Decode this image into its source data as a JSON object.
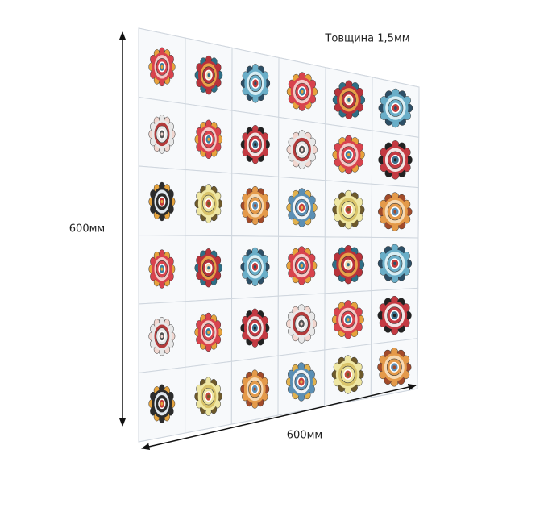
{
  "labels": {
    "thickness": "Товщина 1,5мм",
    "height": "600мм",
    "width": "600мм"
  }
}
